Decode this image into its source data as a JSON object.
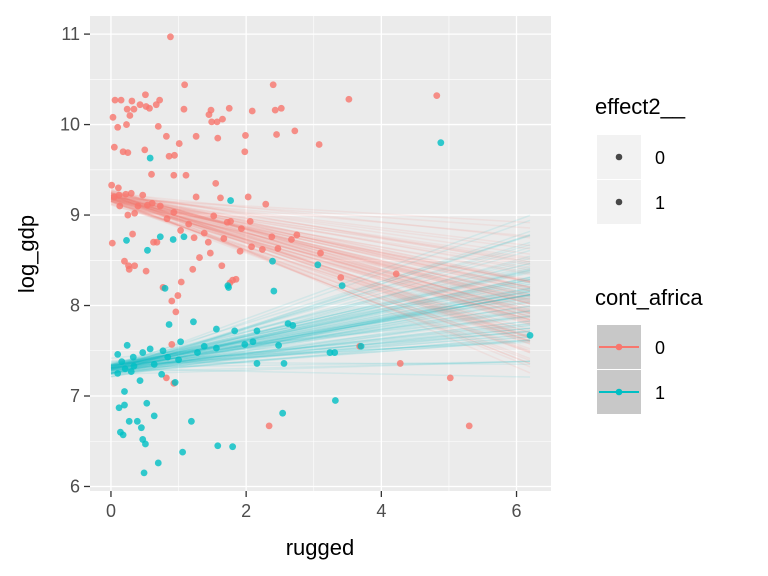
{
  "chart_data": {
    "type": "scatter",
    "xlabel": "rugged",
    "ylabel": "log_gdp",
    "xlim": [
      -0.31,
      6.51
    ],
    "ylim": [
      5.95,
      11.2
    ],
    "x_ticks": [
      0,
      2,
      4,
      6
    ],
    "y_ticks": [
      6,
      7,
      8,
      9,
      10,
      11
    ],
    "grid": true,
    "colors": {
      "group_0": "#F8766D",
      "group_1": "#00BFC4",
      "panel_bg": "#EBEBEB",
      "grid": "#FFFFFF",
      "legend_key_bg": "#F2F2F2",
      "legend_key_bg_color": "#C8C8C8"
    },
    "legends": [
      {
        "title": "effect2__",
        "entries": [
          "0",
          "1"
        ]
      },
      {
        "title": "cont_africa",
        "entries": [
          "0",
          "1"
        ]
      }
    ],
    "series": [
      {
        "name": "0",
        "color": "#F8766D",
        "points": [
          [
            0.88,
            10.97
          ],
          [
            0.06,
            10.27
          ],
          [
            0.15,
            10.27
          ],
          [
            0.31,
            10.26
          ],
          [
            0.51,
            10.33
          ],
          [
            0.52,
            10.2
          ],
          [
            0.57,
            10.18
          ],
          [
            0.67,
            10.22
          ],
          [
            0.72,
            10.27
          ],
          [
            1.09,
            10.44
          ],
          [
            1.08,
            10.17
          ],
          [
            1.48,
            10.16
          ],
          [
            1.49,
            10.03
          ],
          [
            1.57,
            10.03
          ],
          [
            1.45,
            10.11
          ],
          [
            1.65,
            10.06
          ],
          [
            1.75,
            10.18
          ],
          [
            2.09,
            10.15
          ],
          [
            2.4,
            10.44
          ],
          [
            2.43,
            10.16
          ],
          [
            2.52,
            10.18
          ],
          [
            3.52,
            10.28
          ],
          [
            4.82,
            10.32
          ],
          [
            2.72,
            9.93
          ],
          [
            2.45,
            9.89
          ],
          [
            1.99,
            9.88
          ],
          [
            3.08,
            9.78
          ],
          [
            0.03,
            10.08
          ],
          [
            0.24,
            10.17
          ],
          [
            0.1,
            9.97
          ],
          [
            0.23,
            10.0
          ],
          [
            0.28,
            10.1
          ],
          [
            0.34,
            10.17
          ],
          [
            0.43,
            10.22
          ],
          [
            0.7,
            9.98
          ],
          [
            0.82,
            9.87
          ],
          [
            1.01,
            9.79
          ],
          [
            1.26,
            9.87
          ],
          [
            1.58,
            9.85
          ],
          [
            1.98,
            9.7
          ],
          [
            0.05,
            9.75
          ],
          [
            0.18,
            9.7
          ],
          [
            0.25,
            9.69
          ],
          [
            0.5,
            9.72
          ],
          [
            0.6,
            9.45
          ],
          [
            0.86,
            9.65
          ],
          [
            0.94,
            9.66
          ],
          [
            0.93,
            9.44
          ],
          [
            1.11,
            9.44
          ],
          [
            1.26,
            9.2
          ],
          [
            1.55,
            9.35
          ],
          [
            1.62,
            9.19
          ],
          [
            2.03,
            9.2
          ],
          [
            2.29,
            9.12
          ],
          [
            2.06,
            8.93
          ],
          [
            1.77,
            8.93
          ],
          [
            1.52,
            8.99
          ],
          [
            1.38,
            8.8
          ],
          [
            1.15,
            8.9
          ],
          [
            0.93,
            9.03
          ],
          [
            0.73,
            9.1
          ],
          [
            0.47,
            9.22
          ],
          [
            0.35,
            9.02
          ],
          [
            0.25,
            9.0
          ],
          [
            0.13,
            9.1
          ],
          [
            0.05,
            9.2
          ],
          [
            0.01,
            9.33
          ],
          [
            0.11,
            9.3
          ],
          [
            0.22,
            9.23
          ],
          [
            0.3,
            9.24
          ],
          [
            0.4,
            9.1
          ],
          [
            0.61,
            9.13
          ],
          [
            0.83,
            8.96
          ],
          [
            1.03,
            8.83
          ],
          [
            1.23,
            8.75
          ],
          [
            1.44,
            8.7
          ],
          [
            1.67,
            8.74
          ],
          [
            1.91,
            8.6
          ],
          [
            2.08,
            8.65
          ],
          [
            2.24,
            8.62
          ],
          [
            2.47,
            8.63
          ],
          [
            2.67,
            8.73
          ],
          [
            2.75,
            8.78
          ],
          [
            0.02,
            8.69
          ],
          [
            0.2,
            8.49
          ],
          [
            0.26,
            8.44
          ],
          [
            0.35,
            8.44
          ],
          [
            0.52,
            8.38
          ],
          [
            0.63,
            8.7
          ],
          [
            0.77,
            8.2
          ],
          [
            0.9,
            8.05
          ],
          [
            0.99,
            8.11
          ],
          [
            1.04,
            8.26
          ],
          [
            1.21,
            8.4
          ],
          [
            1.31,
            8.53
          ],
          [
            1.47,
            8.58
          ],
          [
            1.64,
            8.44
          ],
          [
            1.8,
            8.28
          ],
          [
            1.85,
            8.29
          ],
          [
            1.76,
            8.25
          ],
          [
            0.96,
            7.93
          ],
          [
            0.9,
            7.57
          ],
          [
            0.82,
            7.2
          ],
          [
            0.93,
            7.14
          ],
          [
            2.34,
            6.67
          ],
          [
            3.1,
            8.58
          ],
          [
            3.4,
            8.31
          ],
          [
            3.68,
            7.55
          ],
          [
            4.22,
            8.35
          ],
          [
            4.28,
            7.36
          ],
          [
            5.02,
            7.2
          ],
          [
            5.3,
            6.67
          ],
          [
            0.27,
            8.4
          ],
          [
            0.32,
            8.79
          ],
          [
            0.54,
            9.11
          ],
          [
            0.68,
            8.7
          ],
          [
            0.12,
            9.22
          ],
          [
            1.72,
            8.92
          ],
          [
            1.93,
            8.85
          ],
          [
            2.38,
            8.76
          ]
        ]
      },
      {
        "name": "1",
        "color": "#00BFC4",
        "points": [
          [
            0.58,
            9.63
          ],
          [
            4.88,
            9.8
          ],
          [
            1.77,
            9.16
          ],
          [
            0.23,
            8.72
          ],
          [
            0.73,
            8.76
          ],
          [
            0.92,
            8.73
          ],
          [
            1.08,
            8.76
          ],
          [
            0.54,
            8.61
          ],
          [
            2.39,
            8.49
          ],
          [
            3.06,
            8.45
          ],
          [
            0.8,
            8.19
          ],
          [
            1.73,
            8.22
          ],
          [
            1.74,
            8.2
          ],
          [
            2.41,
            8.16
          ],
          [
            1.22,
            7.82
          ],
          [
            0.86,
            7.79
          ],
          [
            1.56,
            7.74
          ],
          [
            1.83,
            7.72
          ],
          [
            2.16,
            7.72
          ],
          [
            2.69,
            7.78
          ],
          [
            0.1,
            7.46
          ],
          [
            0.24,
            7.56
          ],
          [
            0.33,
            7.43
          ],
          [
            0.47,
            7.48
          ],
          [
            0.58,
            7.52
          ],
          [
            0.64,
            7.35
          ],
          [
            0.77,
            7.5
          ],
          [
            0.84,
            7.43
          ],
          [
            1.0,
            7.4
          ],
          [
            1.28,
            7.48
          ],
          [
            1.56,
            7.53
          ],
          [
            1.98,
            7.57
          ],
          [
            2.1,
            7.6
          ],
          [
            2.48,
            7.56
          ],
          [
            2.56,
            7.36
          ],
          [
            2.16,
            7.36
          ],
          [
            3.24,
            7.48
          ],
          [
            3.7,
            7.55
          ],
          [
            6.2,
            7.67
          ],
          [
            0.1,
            7.25
          ],
          [
            0.21,
            7.3
          ],
          [
            0.3,
            7.27
          ],
          [
            0.2,
            7.05
          ],
          [
            0.43,
            7.17
          ],
          [
            0.75,
            7.24
          ],
          [
            0.95,
            7.15
          ],
          [
            0.53,
            6.92
          ],
          [
            0.64,
            6.78
          ],
          [
            0.2,
            6.9
          ],
          [
            0.12,
            6.87
          ],
          [
            0.27,
            6.72
          ],
          [
            0.39,
            6.72
          ],
          [
            0.14,
            6.6
          ],
          [
            0.18,
            6.57
          ],
          [
            0.45,
            6.65
          ],
          [
            0.47,
            6.52
          ],
          [
            0.51,
            6.47
          ],
          [
            0.49,
            6.15
          ],
          [
            0.7,
            6.26
          ],
          [
            1.06,
            6.38
          ],
          [
            1.19,
            6.72
          ],
          [
            1.58,
            6.45
          ],
          [
            1.8,
            6.44
          ],
          [
            2.54,
            6.81
          ],
          [
            3.32,
            6.95
          ],
          [
            3.31,
            7.48
          ],
          [
            3.42,
            8.22
          ],
          [
            2.62,
            7.8
          ],
          [
            0.34,
            7.33
          ],
          [
            0.16,
            7.38
          ],
          [
            1.03,
            7.6
          ],
          [
            1.38,
            7.55
          ]
        ]
      }
    ],
    "fit_lines": {
      "x_range": [
        0,
        6.2
      ],
      "group_0": {
        "intercept_mean": 9.2,
        "slope_mean": -0.2,
        "intercept_sd": 0.06,
        "slope_sd": 0.08,
        "count": 100
      },
      "group_1": {
        "intercept_mean": 7.3,
        "slope_mean": 0.13,
        "intercept_sd": 0.06,
        "slope_sd": 0.08,
        "count": 100
      }
    }
  }
}
